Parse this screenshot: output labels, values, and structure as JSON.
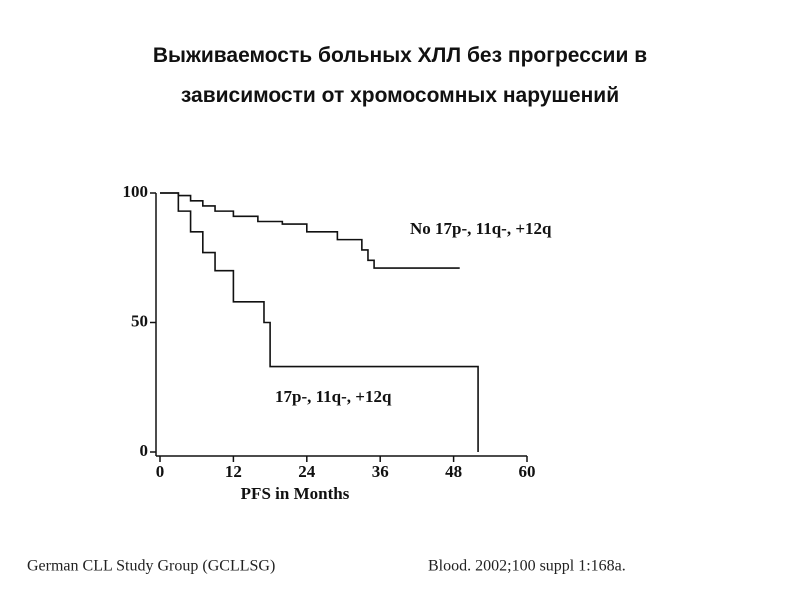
{
  "chart_data": {
    "type": "line",
    "title": "Выживаемость больных ХЛЛ без прогрессии в зависимости от хромосомных нарушений",
    "xlabel": "PFS in Months",
    "xlim": [
      0,
      60
    ],
    "xticks": [
      0,
      12,
      24,
      36,
      48,
      60
    ],
    "ylim": [
      0,
      100
    ],
    "yticks": [
      0,
      50,
      100
    ],
    "series": [
      {
        "name": "No 17p-, 11q-, +12q",
        "color": "#111111",
        "x": [
          0,
          3,
          3,
          5,
          5,
          7,
          7,
          9,
          9,
          12,
          12,
          16,
          16,
          20,
          20,
          24,
          24,
          29,
          29,
          33,
          33,
          34,
          34,
          35,
          35,
          49
        ],
        "values": [
          100,
          100,
          99,
          99,
          97,
          97,
          95,
          95,
          93,
          93,
          91,
          91,
          89,
          89,
          88,
          88,
          85,
          85,
          82,
          82,
          78,
          78,
          74,
          74,
          71,
          71
        ]
      },
      {
        "name": "17p-, 11q-, +12q",
        "color": "#111111",
        "x": [
          0,
          3,
          3,
          5,
          5,
          7,
          7,
          9,
          9,
          12,
          12,
          17,
          17,
          18,
          18,
          52,
          52
        ],
        "values": [
          100,
          100,
          93,
          93,
          85,
          85,
          77,
          77,
          70,
          70,
          58,
          58,
          50,
          50,
          33,
          33,
          0
        ]
      }
    ],
    "source_left": "German CLL Study Group (GCLLSG)",
    "source_right": "Blood. 2002;100 suppl 1:168a."
  }
}
